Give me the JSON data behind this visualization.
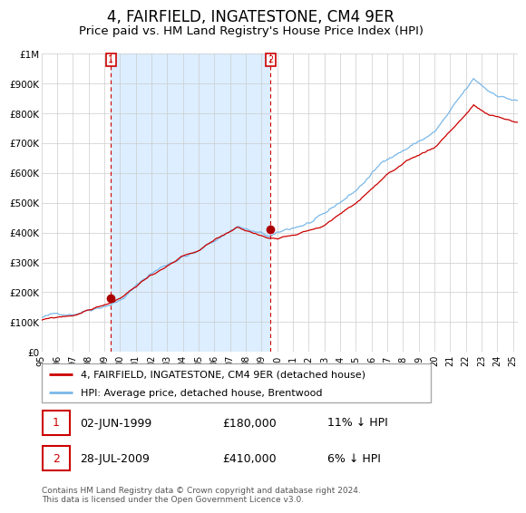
{
  "title": "4, FAIRFIELD, INGATESTONE, CM4 9ER",
  "subtitle": "Price paid vs. HM Land Registry's House Price Index (HPI)",
  "title_fontsize": 12,
  "subtitle_fontsize": 9.5,
  "xlim": [
    1995.0,
    2025.3
  ],
  "ylim": [
    0,
    1000000
  ],
  "yticks": [
    0,
    100000,
    200000,
    300000,
    400000,
    500000,
    600000,
    700000,
    800000,
    900000,
    1000000
  ],
  "ytick_labels": [
    "£0",
    "£100K",
    "£200K",
    "£300K",
    "£400K",
    "£500K",
    "£600K",
    "£700K",
    "£800K",
    "£900K",
    "£1M"
  ],
  "hpi_color": "#7ab8e8",
  "price_color": "#cc0000",
  "marker_color": "#aa0000",
  "vline_color": "#cc0000",
  "shade_color": "#dceeff",
  "sale1_year": 1999.42,
  "sale1_price": 180000,
  "sale1_label": "1",
  "sale1_date": "02-JUN-1999",
  "sale1_amount": "£180,000",
  "sale1_note": "11% ↓ HPI",
  "sale2_year": 2009.58,
  "sale2_price": 410000,
  "sale2_label": "2",
  "sale2_date": "28-JUL-2009",
  "sale2_amount": "£410,000",
  "sale2_note": "6% ↓ HPI",
  "legend_line1": "4, FAIRFIELD, INGATESTONE, CM4 9ER (detached house)",
  "legend_line2": "HPI: Average price, detached house, Brentwood",
  "footer": "Contains HM Land Registry data © Crown copyright and database right 2024.\nThis data is licensed under the Open Government Licence v3.0.",
  "background_color": "#ffffff",
  "grid_color": "#cccccc",
  "hpi_seed": 42,
  "price_seed": 99
}
